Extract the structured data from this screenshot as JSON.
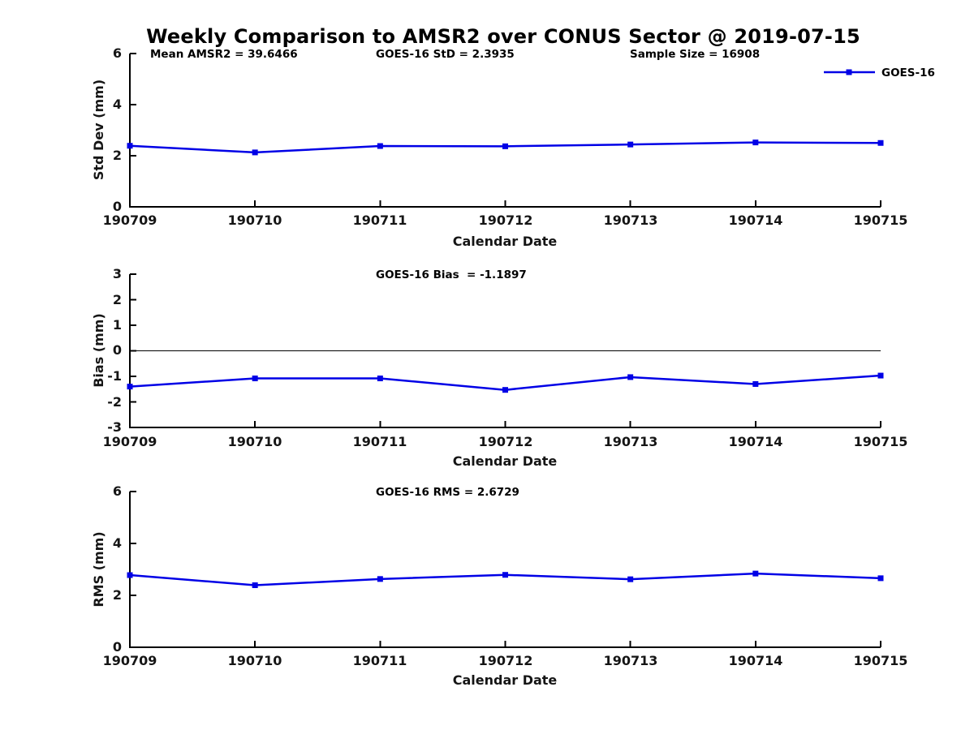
{
  "header": {
    "title": "Weekly Comparison to AMSR2 over CONUS Sector @ 2019-07-15"
  },
  "colors": {
    "line": "#0000E6",
    "axis": "#000000",
    "background": "#FFFFFF",
    "text": "#000000"
  },
  "legend": {
    "label": "GOES-16",
    "position": "top-right",
    "marker": "filled-square"
  },
  "chart_data": [
    {
      "type": "line",
      "panel": "std-dev",
      "annotations": [
        "Mean AMSR2 = 39.6466",
        "GOES-16 StD = 2.3935",
        "Sample Size = 16908"
      ],
      "x": [
        "190709",
        "190710",
        "190711",
        "190712",
        "190713",
        "190714",
        "190715"
      ],
      "series": [
        {
          "name": "GOES-16",
          "color": "#0000E6",
          "marker": "square",
          "values": [
            2.39,
            2.13,
            2.38,
            2.37,
            2.44,
            2.52,
            2.5
          ]
        }
      ],
      "xlabel": "Calendar Date",
      "ylabel": "Std Dev (mm)",
      "ylim": [
        0,
        6
      ],
      "yticks": [
        0,
        2,
        4,
        6
      ],
      "grid": false,
      "legend_shown": true
    },
    {
      "type": "line",
      "panel": "bias",
      "annotations": [
        "GOES-16 Bias  = -1.1897"
      ],
      "x": [
        "190709",
        "190710",
        "190711",
        "190712",
        "190713",
        "190714",
        "190715"
      ],
      "series": [
        {
          "name": "GOES-16",
          "color": "#0000E6",
          "marker": "square",
          "values": [
            -1.4,
            -1.08,
            -1.08,
            -1.53,
            -1.03,
            -1.3,
            -0.97
          ]
        }
      ],
      "xlabel": "Calendar Date",
      "ylabel": "Bias (mm)",
      "ylim": [
        -3,
        3
      ],
      "yticks": [
        -3,
        -2,
        -1,
        0,
        1,
        2,
        3
      ],
      "zero_line": true,
      "grid": false,
      "legend_shown": false
    },
    {
      "type": "line",
      "panel": "rms",
      "annotations": [
        "GOES-16 RMS = 2.6729"
      ],
      "x": [
        "190709",
        "190710",
        "190711",
        "190712",
        "190713",
        "190714",
        "190715"
      ],
      "series": [
        {
          "name": "GOES-16",
          "color": "#0000E6",
          "marker": "square",
          "values": [
            2.78,
            2.39,
            2.63,
            2.79,
            2.62,
            2.84,
            2.66
          ]
        }
      ],
      "xlabel": "Calendar Date",
      "ylabel": "RMS (mm)",
      "ylim": [
        0,
        6
      ],
      "yticks": [
        0,
        2,
        4,
        6
      ],
      "grid": false,
      "legend_shown": false
    }
  ]
}
